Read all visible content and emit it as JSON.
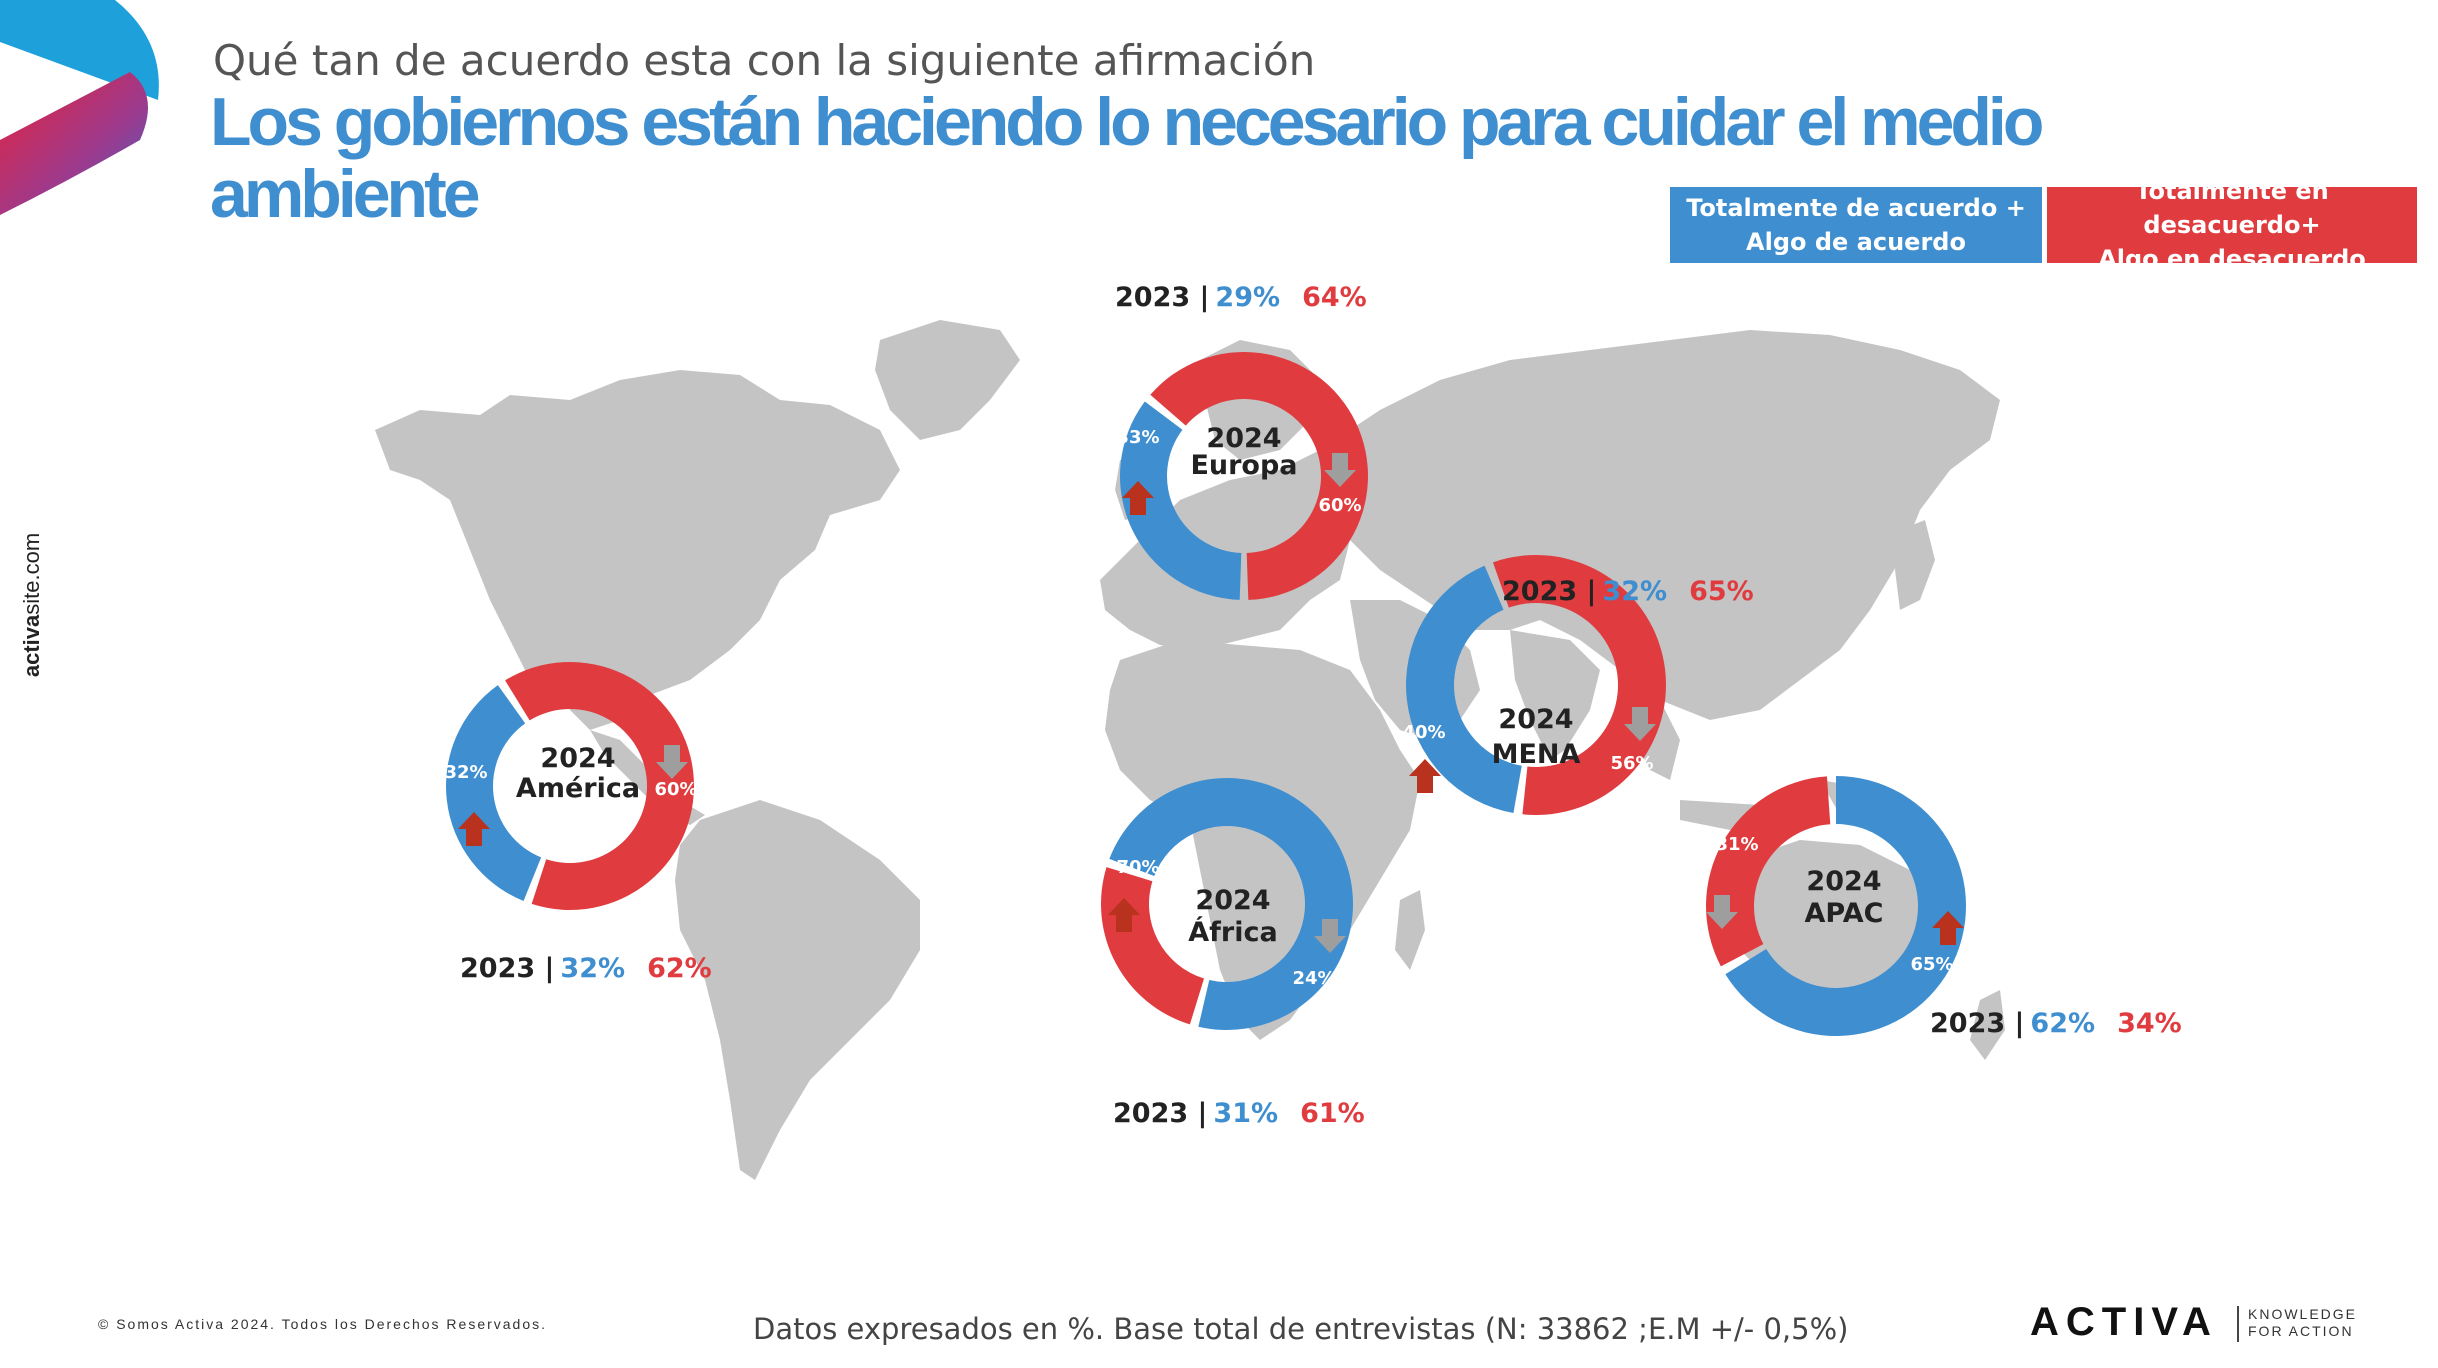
{
  "header": {
    "subtitle": "Qué tan de acuerdo esta con la siguiente afirmación",
    "title": "Los gobiernos están haciendo lo necesario para cuidar el medio ambiente"
  },
  "legend": {
    "agree_line1": "Totalmente de acuerdo +",
    "agree_line2": "Algo de acuerdo",
    "disagree_line1": "Totalmente en desacuerdo+",
    "disagree_line2": "Algo en desacuerdo"
  },
  "sidebar": {
    "url_bold": "activa",
    "url_rest": "site.com"
  },
  "footer": {
    "copyright": "© Somos Activa 2024. Todos los Derechos Reservados.",
    "note": "Datos expresados  en %. Base total de entrevistas  (N: 33862  ;E.M +/- 0,5%)",
    "brand": "ACTIVA",
    "tagline_1": "KNOWLEDGE",
    "tagline_2": "FOR ACTION"
  },
  "colors": {
    "agree": "#3e8ed0",
    "disagree": "#e03c3f",
    "map": "#c4c4c4",
    "arrow_up": "#b8321e",
    "arrow_down": "#9e9e9e"
  },
  "icons": {
    "arrow_up": "arrow-up-icon",
    "arrow_down": "arrow-down-icon",
    "logo": "activa-logo-icon"
  },
  "chart_data": [
    {
      "type": "pie",
      "region": "Europa",
      "year_label": "2024",
      "agree": 33,
      "disagree": 60,
      "agree_label": "33%",
      "disagree_label": "60%",
      "agree_trend": "up",
      "disagree_trend": "down",
      "prev_year": "2023",
      "prev_agree": "29%",
      "prev_disagree": "64%"
    },
    {
      "type": "pie",
      "region": "América",
      "year_label": "2024",
      "agree": 32,
      "disagree": 60,
      "agree_label": "32%",
      "disagree_label": "60%",
      "agree_trend": "up",
      "disagree_trend": "down",
      "prev_year": "2023",
      "prev_agree": "32%",
      "prev_disagree": "62%"
    },
    {
      "type": "pie",
      "region": "MENA",
      "year_label": "2024",
      "agree": 40,
      "disagree": 56,
      "agree_label": "40%",
      "disagree_label": "56%",
      "agree_trend": "up",
      "disagree_trend": "down",
      "prev_year": "2023",
      "prev_agree": "32%",
      "prev_disagree": "65%"
    },
    {
      "type": "pie",
      "region": "África",
      "year_label": "2024",
      "agree": 70,
      "disagree": 24,
      "agree_label": "70%",
      "disagree_label": "24%",
      "agree_trend": "up",
      "disagree_trend": "down",
      "prev_year": "2023",
      "prev_agree": "31%",
      "prev_disagree": "61%"
    },
    {
      "type": "pie",
      "region": "APAC",
      "year_label": "2024",
      "agree": 65,
      "disagree": 31,
      "agree_label": "65%",
      "disagree_label": "31%",
      "agree_trend": "up",
      "disagree_trend": "down",
      "prev_year": "2023",
      "prev_agree": "62%",
      "prev_disagree": "34%"
    }
  ]
}
